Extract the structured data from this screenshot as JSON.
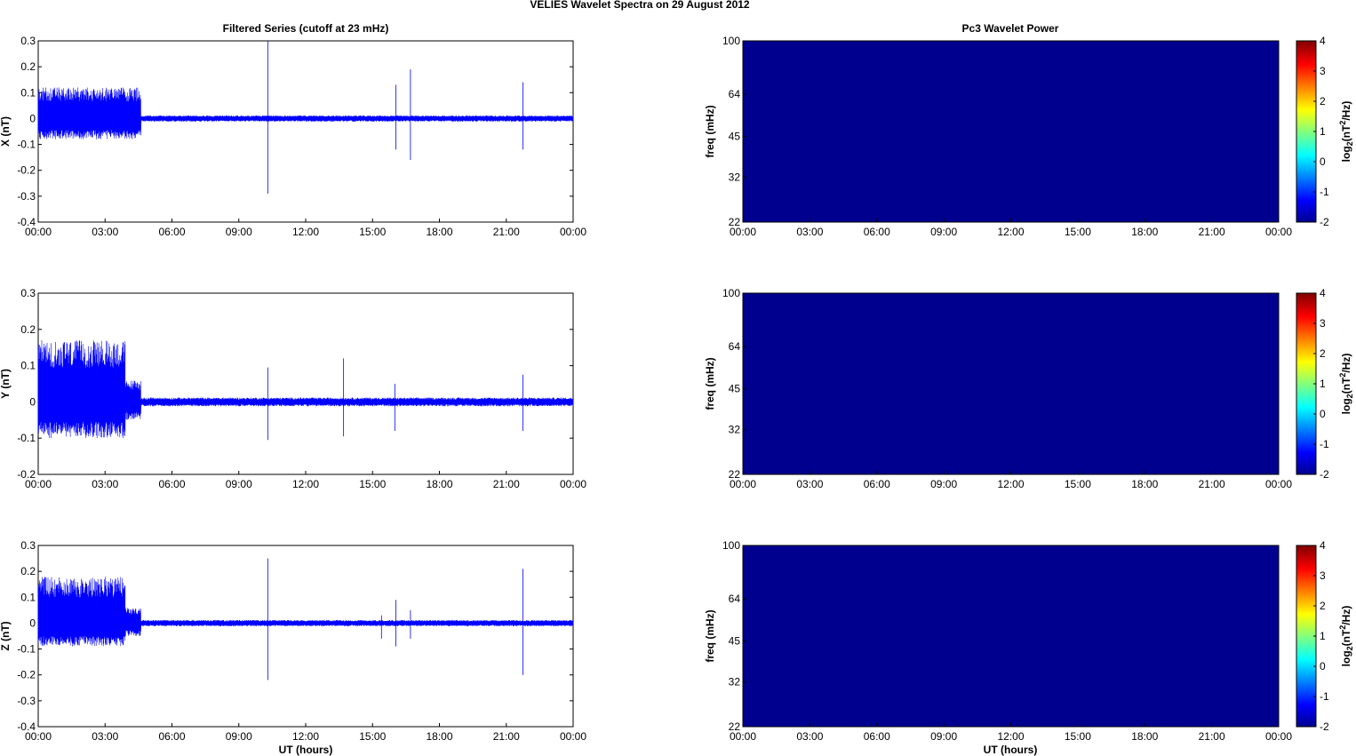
{
  "figure": {
    "suptitle": "VELIES Wavelet Spectra on 29 August    2012",
    "left_title": "Filtered Series (cutoff at 23 mHz)",
    "right_title": "Pc3 Wavelet Power",
    "xlabel": "UT (hours)",
    "time_ticks": [
      "00:00",
      "03:00",
      "06:00",
      "09:00",
      "12:00",
      "15:00",
      "18:00",
      "21:00",
      "00:00"
    ],
    "freq_label": "freq (mHz)",
    "freq_ticks": [
      "100",
      "64",
      "45",
      "32",
      "22"
    ],
    "colorbar_label": "log2(nT2/Hz)",
    "colorbar_ticks": [
      "4",
      "3",
      "2",
      "1",
      "0",
      "-1",
      "-2"
    ],
    "colors": {
      "signal": "#0000ff",
      "spectrogram_fill": "#00008f",
      "colormap": [
        "#00008f",
        "#0000ff",
        "#00ffff",
        "#ffff00",
        "#ff0000",
        "#800000"
      ]
    }
  },
  "chart_data": [
    {
      "type": "line",
      "component": "X",
      "ylabel": "X (nT)",
      "ylim": [
        -0.4,
        0.3
      ],
      "yticks": [
        "0.3",
        "0.2",
        "0.1",
        "0",
        "-0.1",
        "-0.2",
        "-0.3",
        "-0.4"
      ],
      "xlim_hours": [
        0,
        24
      ],
      "envelope": {
        "segments": [
          {
            "t_start": 0.0,
            "t_end": 4.6,
            "upper": 0.12,
            "lower": -0.08
          },
          {
            "t_start": 4.6,
            "t_end": 24.0,
            "upper": 0.012,
            "lower": -0.012
          }
        ],
        "spikes": [
          {
            "t": 10.3,
            "max": 0.3,
            "min": -0.29
          },
          {
            "t": 16.05,
            "max": 0.13,
            "min": -0.12
          },
          {
            "t": 16.7,
            "max": 0.19,
            "min": -0.16
          },
          {
            "t": 21.75,
            "max": 0.14,
            "min": -0.12
          }
        ]
      }
    },
    {
      "type": "line",
      "component": "Y",
      "ylabel": "Y (nT)",
      "ylim": [
        -0.2,
        0.3
      ],
      "yticks": [
        "0.3",
        "0.2",
        "0.1",
        "0",
        "-0.1",
        "-0.2"
      ],
      "xlim_hours": [
        0,
        24
      ],
      "envelope": {
        "segments": [
          {
            "t_start": 0.0,
            "t_end": 3.9,
            "upper": 0.17,
            "lower": -0.1
          },
          {
            "t_start": 3.9,
            "t_end": 4.6,
            "upper": 0.06,
            "lower": -0.05
          },
          {
            "t_start": 4.6,
            "t_end": 24.0,
            "upper": 0.012,
            "lower": -0.012
          }
        ],
        "spikes": [
          {
            "t": 10.3,
            "max": 0.095,
            "min": -0.105
          },
          {
            "t": 13.7,
            "max": 0.12,
            "min": -0.095
          },
          {
            "t": 16.0,
            "max": 0.05,
            "min": -0.08
          },
          {
            "t": 21.75,
            "max": 0.075,
            "min": -0.08
          }
        ]
      }
    },
    {
      "type": "line",
      "component": "Z",
      "ylabel": "Z (nT)",
      "ylim": [
        -0.4,
        0.3
      ],
      "yticks": [
        "0.3",
        "0.2",
        "0.1",
        "0",
        "-0.1",
        "-0.2",
        "-0.3",
        "-0.4"
      ],
      "xlim_hours": [
        0,
        24
      ],
      "envelope": {
        "segments": [
          {
            "t_start": 0.0,
            "t_end": 3.9,
            "upper": 0.18,
            "lower": -0.09
          },
          {
            "t_start": 3.9,
            "t_end": 4.6,
            "upper": 0.06,
            "lower": -0.05
          },
          {
            "t_start": 4.6,
            "t_end": 24.0,
            "upper": 0.012,
            "lower": -0.012
          }
        ],
        "spikes": [
          {
            "t": 10.3,
            "max": 0.25,
            "min": -0.22
          },
          {
            "t": 15.4,
            "max": 0.03,
            "min": -0.06
          },
          {
            "t": 16.05,
            "max": 0.09,
            "min": -0.09
          },
          {
            "t": 16.7,
            "max": 0.05,
            "min": -0.06
          },
          {
            "t": 21.75,
            "max": 0.21,
            "min": -0.2
          }
        ]
      }
    },
    {
      "type": "heatmap",
      "component": "X",
      "ylabel": "freq (mHz)",
      "ylim_mHz": [
        22,
        100
      ],
      "yscale": "log",
      "clim": [
        -2,
        4
      ],
      "values": "uniform minimum (-2) across all times and frequencies"
    },
    {
      "type": "heatmap",
      "component": "Y",
      "ylabel": "freq (mHz)",
      "ylim_mHz": [
        22,
        100
      ],
      "yscale": "log",
      "clim": [
        -2,
        4
      ],
      "values": "uniform minimum (-2) across all times and frequencies"
    },
    {
      "type": "heatmap",
      "component": "Z",
      "ylabel": "freq (mHz)",
      "ylim_mHz": [
        22,
        100
      ],
      "yscale": "log",
      "clim": [
        -2,
        4
      ],
      "values": "uniform minimum (-2) across all times and frequencies"
    }
  ]
}
